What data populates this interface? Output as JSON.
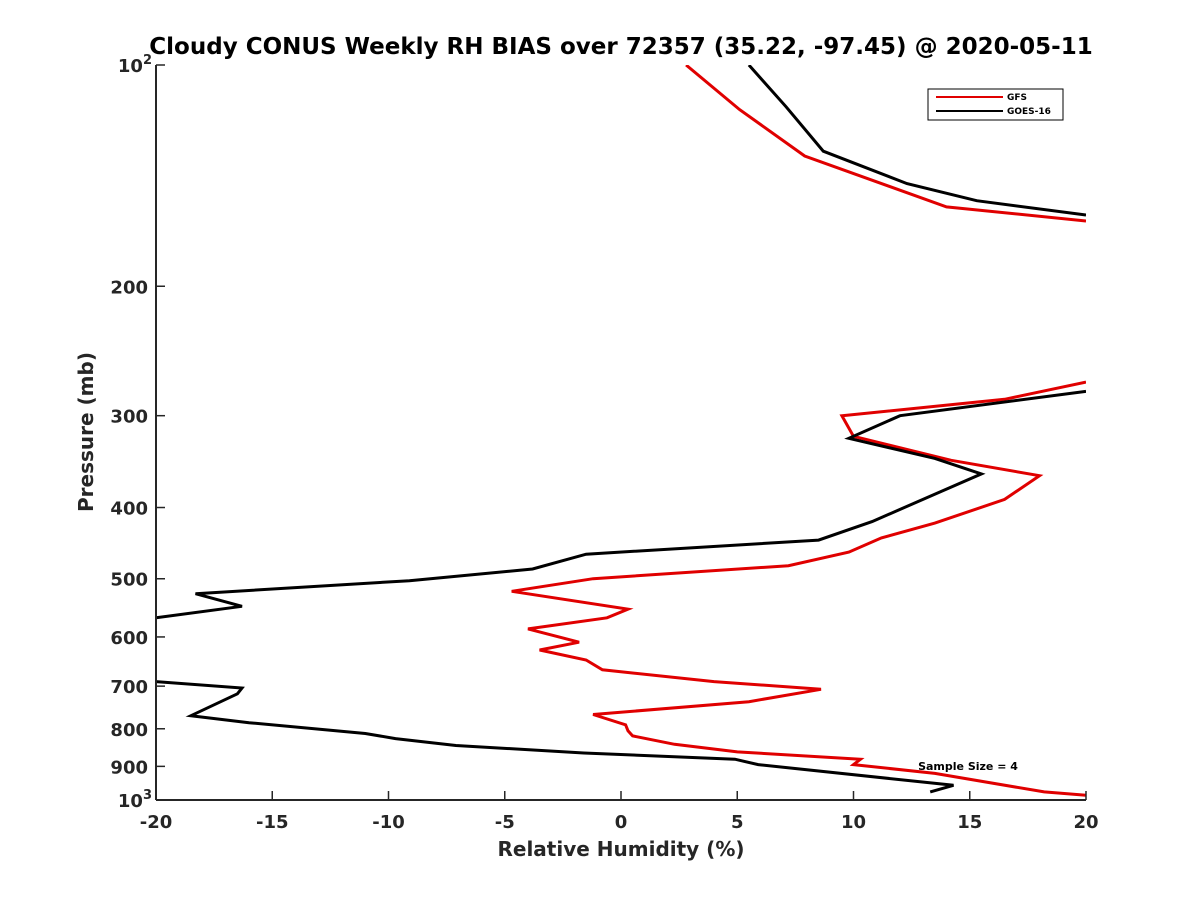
{
  "chart_data": {
    "type": "line",
    "title": "Cloudy CONUS Weekly RH BIAS over 72357 (35.22, -97.45) @ 2020-05-11",
    "xlabel": "Relative Humidity (%)",
    "ylabel": "Pressure (mb)",
    "xlim": [
      -20,
      20
    ],
    "ylim": [
      100,
      1000
    ],
    "y_scale": "log",
    "y_reversed": true,
    "x_ticks": [
      "-20",
      "-15",
      "-10",
      "-5",
      "0",
      "5",
      "10",
      "15",
      "20"
    ],
    "x_tick_values": [
      -20,
      -15,
      -10,
      -5,
      0,
      5,
      10,
      15,
      20
    ],
    "y_tick_values": [
      100,
      200,
      300,
      400,
      500,
      600,
      700,
      800,
      900,
      1000
    ],
    "y_ticks": [
      "10",
      "200",
      "300",
      "400",
      "500",
      "600",
      "700",
      "800",
      "900",
      "10"
    ],
    "y_tick_exponents": [
      "2",
      "",
      "",
      "",
      "",
      "",
      "",
      "",
      "",
      "3"
    ],
    "grid": false,
    "legend_position": "top-right",
    "annotation": "Sample Size = 4",
    "series": [
      {
        "name": "GFS",
        "color": "#e00000",
        "segments": [
          [
            [
              2.8,
              100
            ],
            [
              5.1,
              115
            ],
            [
              7.9,
              133
            ],
            [
              14,
              156
            ],
            [
              20,
              163
            ]
          ],
          [
            [
              20,
              270
            ],
            [
              16.5,
              285
            ],
            [
              9.5,
              300
            ],
            [
              10,
              320
            ],
            [
              14.2,
              345
            ],
            [
              18,
              362
            ],
            [
              16.5,
              390
            ],
            [
              13.5,
              420
            ],
            [
              11.2,
              440
            ],
            [
              9.8,
              460
            ],
            [
              7.2,
              480
            ],
            [
              -1.2,
              500
            ],
            [
              -4.7,
              520
            ],
            [
              0.3,
              550
            ],
            [
              -0.6,
              565
            ],
            [
              -4,
              585
            ],
            [
              -1.8,
              610
            ],
            [
              -3.5,
              625
            ],
            [
              -1.5,
              645
            ],
            [
              -0.8,
              665
            ],
            [
              4,
              690
            ],
            [
              8.6,
              707
            ],
            [
              5.5,
              735
            ],
            [
              -1.2,
              765
            ],
            [
              0.2,
              790
            ],
            [
              0.3,
              805
            ],
            [
              0.5,
              818
            ],
            [
              2.3,
              840
            ],
            [
              5,
              860
            ],
            [
              10.3,
              880
            ],
            [
              10,
              895
            ],
            [
              13.5,
              920
            ],
            [
              18.2,
              975
            ],
            [
              20,
              985
            ]
          ]
        ]
      },
      {
        "name": "GOES-16",
        "color": "#000000",
        "segments": [
          [
            [
              5.5,
              100
            ],
            [
              7.1,
              114
            ],
            [
              8.7,
              131
            ],
            [
              12.3,
              145
            ],
            [
              15.3,
              153
            ],
            [
              20,
              160
            ]
          ],
          [
            [
              20,
              278
            ],
            [
              12,
              300
            ],
            [
              9.8,
              322
            ],
            [
              13.5,
              343
            ],
            [
              15.5,
              360
            ],
            [
              13.8,
              380
            ],
            [
              10.8,
              418
            ],
            [
              8.5,
              443
            ],
            [
              -1.5,
              463
            ],
            [
              -3.8,
              485
            ],
            [
              -9.1,
              503
            ],
            [
              -18.3,
              524
            ],
            [
              -16.3,
              545
            ],
            [
              -20,
              565
            ]
          ],
          [
            [
              -20,
              690
            ],
            [
              -16.3,
              704
            ],
            [
              -16.5,
              717
            ],
            [
              -18.5,
              768
            ],
            [
              -16,
              785
            ],
            [
              -11,
              812
            ],
            [
              -9.7,
              825
            ],
            [
              -7.1,
              843
            ],
            [
              -1.6,
              863
            ],
            [
              4.9,
              880
            ],
            [
              5.9,
              895
            ],
            [
              14.3,
              955
            ],
            [
              13.3,
              975
            ]
          ]
        ]
      }
    ]
  }
}
